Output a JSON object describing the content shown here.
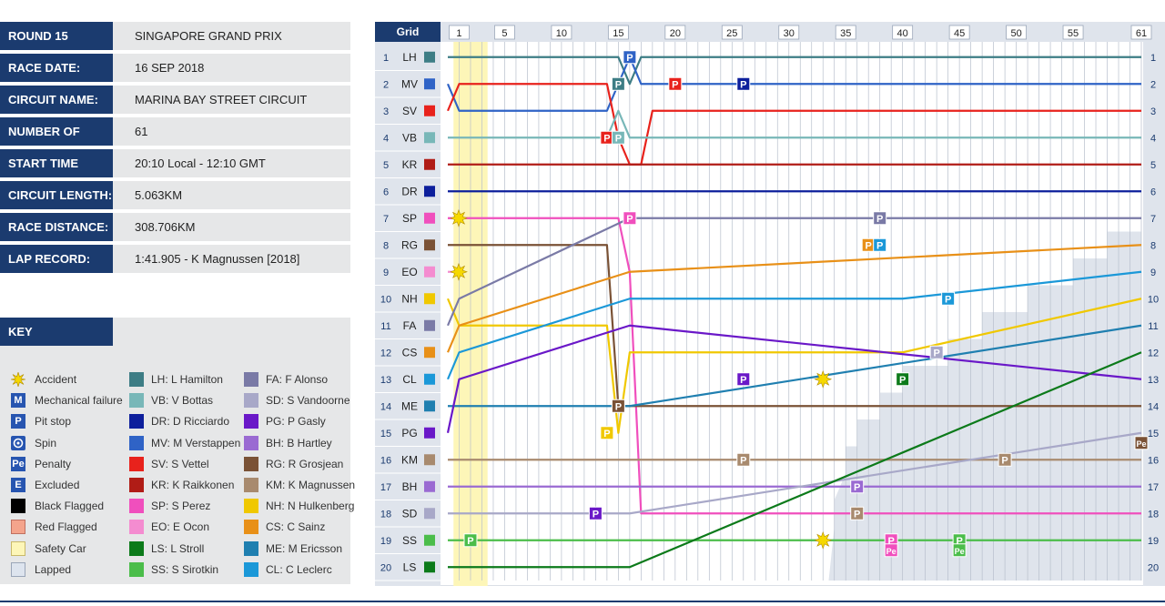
{
  "info": [
    {
      "label": "ROUND 15",
      "value": "SINGAPORE GRAND PRIX"
    },
    {
      "label": "RACE DATE:",
      "value": "16 SEP 2018"
    },
    {
      "label": "CIRCUIT NAME:",
      "value": "MARINA BAY STREET CIRCUIT"
    },
    {
      "label": "NUMBER OF LAPS:",
      "value": "61"
    },
    {
      "label": "START TIME",
      "value": "20:10 Local - 12:10 GMT"
    },
    {
      "label": "CIRCUIT LENGTH:",
      "value": "5.063KM"
    },
    {
      "label": "RACE DISTANCE:",
      "value": "308.706KM"
    },
    {
      "label": "LAP RECORD:",
      "value": "1:41.905 - K Magnussen [2018]"
    }
  ],
  "key": {
    "title": "KEY",
    "symbols": [
      {
        "label": "Accident",
        "icon": "accident-icon"
      },
      {
        "label": "Mechanical failure",
        "icon": "M"
      },
      {
        "label": "Pit stop",
        "icon": "P"
      },
      {
        "label": "Spin",
        "icon": "spin-icon"
      },
      {
        "label": "Penalty",
        "icon": "Pe"
      },
      {
        "label": "Excluded",
        "icon": "E"
      },
      {
        "label": "Black Flagged",
        "icon": "black-flag"
      },
      {
        "label": "Red Flagged",
        "icon": "red-flag"
      },
      {
        "label": "Safety Car",
        "icon": "safety-car"
      },
      {
        "label": "Lapped",
        "icon": "lapped"
      }
    ],
    "drivers_col1": [
      {
        "code": "LH",
        "label": "LH: L Hamilton",
        "color": "#3d7d85"
      },
      {
        "code": "VB",
        "label": "VB: V Bottas",
        "color": "#78b7b8"
      },
      {
        "code": "DR",
        "label": "DR: D Ricciardo",
        "color": "#0d1f9c"
      },
      {
        "code": "MV",
        "label": "MV: M Verstappen",
        "color": "#2f63c6"
      },
      {
        "code": "SV",
        "label": "SV: S Vettel",
        "color": "#e8221c"
      },
      {
        "code": "KR",
        "label": "KR: K Raikkonen",
        "color": "#b01c16"
      },
      {
        "code": "SP",
        "label": "SP: S Perez",
        "color": "#f04fbd"
      },
      {
        "code": "EO",
        "label": "EO: E Ocon",
        "color": "#f48cd0"
      },
      {
        "code": "LS",
        "label": "LS: L Stroll",
        "color": "#0c7a1a"
      },
      {
        "code": "SS",
        "label": "SS: S Sirotkin",
        "color": "#4bbd4a"
      }
    ],
    "drivers_col2": [
      {
        "code": "FA",
        "label": "FA: F Alonso",
        "color": "#7a7aa6"
      },
      {
        "code": "SD",
        "label": "SD: S Vandoorne",
        "color": "#a8a8c8"
      },
      {
        "code": "PG",
        "label": "PG: P Gasly",
        "color": "#6a18c8"
      },
      {
        "code": "BH",
        "label": "BH: B Hartley",
        "color": "#9a6ad2"
      },
      {
        "code": "RG",
        "label": "RG: R Grosjean",
        "color": "#7a5236"
      },
      {
        "code": "KM",
        "label": "KM: K Magnussen",
        "color": "#a88a6e"
      },
      {
        "code": "NH",
        "label": "NH: N Hulkenberg",
        "color": "#f0c800"
      },
      {
        "code": "CS",
        "label": "CS: C Sainz",
        "color": "#e89018"
      },
      {
        "code": "ME",
        "label": "ME: M Ericsson",
        "color": "#1f7fb0"
      },
      {
        "code": "CL",
        "label": "CL: C Leclerc",
        "color": "#1b98d8"
      }
    ]
  },
  "chart_data": {
    "type": "line",
    "title": "",
    "corner_label": "Grid",
    "x_ticks": [
      1,
      5,
      10,
      15,
      20,
      25,
      30,
      35,
      40,
      45,
      50,
      55,
      61
    ],
    "x_range": [
      0,
      61
    ],
    "y_positions": [
      1,
      2,
      3,
      4,
      5,
      6,
      7,
      8,
      9,
      10,
      11,
      12,
      13,
      14,
      15,
      16,
      17,
      18,
      19,
      20
    ],
    "grid_order": [
      "LH",
      "MV",
      "SV",
      "VB",
      "KR",
      "DR",
      "SP",
      "RG",
      "EO",
      "NH",
      "FA",
      "CS",
      "CL",
      "ME",
      "PG",
      "KM",
      "BH",
      "SD",
      "SS",
      "LS"
    ],
    "safety_car_laps": [
      1,
      3
    ],
    "series": [
      {
        "name": "LH",
        "color": "#3d7d85",
        "points": [
          [
            0,
            1
          ],
          [
            15,
            1
          ],
          [
            16,
            2
          ],
          [
            17,
            1
          ],
          [
            61,
            1
          ]
        ]
      },
      {
        "name": "MV",
        "color": "#2f63c6",
        "points": [
          [
            0,
            2
          ],
          [
            1,
            3
          ],
          [
            14,
            3
          ],
          [
            15,
            2
          ],
          [
            16,
            1
          ],
          [
            17,
            2
          ],
          [
            61,
            2
          ]
        ]
      },
      {
        "name": "SV",
        "color": "#e8221c",
        "points": [
          [
            0,
            3
          ],
          [
            1,
            2
          ],
          [
            14,
            2
          ],
          [
            15,
            4
          ],
          [
            16,
            5
          ],
          [
            17,
            5
          ],
          [
            18,
            3
          ],
          [
            61,
            3
          ]
        ]
      },
      {
        "name": "VB",
        "color": "#78b7b8",
        "points": [
          [
            0,
            4
          ],
          [
            14,
            4
          ],
          [
            15,
            3
          ],
          [
            16,
            4
          ],
          [
            17,
            4
          ],
          [
            18,
            4
          ],
          [
            61,
            4
          ]
        ]
      },
      {
        "name": "KR",
        "color": "#b01c16",
        "points": [
          [
            0,
            5
          ],
          [
            61,
            5
          ]
        ]
      },
      {
        "name": "DR",
        "color": "#0d1f9c",
        "points": [
          [
            0,
            6
          ],
          [
            61,
            6
          ]
        ]
      },
      {
        "name": "SP",
        "color": "#f04fbd",
        "points": [
          [
            0,
            7
          ],
          [
            14,
            7
          ],
          [
            15,
            7
          ],
          [
            16,
            9
          ],
          [
            17,
            18
          ],
          [
            61,
            18
          ]
        ]
      },
      {
        "name": "RG",
        "color": "#7a5236",
        "points": [
          [
            0,
            8
          ],
          [
            14,
            8
          ],
          [
            15,
            14
          ],
          [
            61,
            14
          ]
        ]
      },
      {
        "name": "EO",
        "color": "#f48cd0",
        "points": [
          [
            0,
            9
          ],
          [
            1,
            9
          ]
        ]
      },
      {
        "name": "NH",
        "color": "#f0c800",
        "points": [
          [
            0,
            10
          ],
          [
            1,
            11
          ],
          [
            14,
            11
          ],
          [
            15,
            15
          ],
          [
            16,
            12
          ],
          [
            40,
            12
          ],
          [
            61,
            10
          ]
        ]
      },
      {
        "name": "FA",
        "color": "#7a7aa6",
        "points": [
          [
            0,
            11
          ],
          [
            1,
            10
          ],
          [
            16,
            7
          ],
          [
            61,
            7
          ]
        ]
      },
      {
        "name": "CS",
        "color": "#e89018",
        "points": [
          [
            0,
            12
          ],
          [
            1,
            11
          ],
          [
            16,
            9
          ],
          [
            61,
            8
          ]
        ]
      },
      {
        "name": "CL",
        "color": "#1b98d8",
        "points": [
          [
            0,
            13
          ],
          [
            1,
            12
          ],
          [
            16,
            10
          ],
          [
            40,
            10
          ],
          [
            61,
            9
          ]
        ]
      },
      {
        "name": "ME",
        "color": "#1f7fb0",
        "points": [
          [
            0,
            14
          ],
          [
            1,
            14
          ],
          [
            16,
            14
          ],
          [
            61,
            11
          ]
        ]
      },
      {
        "name": "PG",
        "color": "#6a18c8",
        "points": [
          [
            0,
            15
          ],
          [
            1,
            13
          ],
          [
            16,
            11
          ],
          [
            61,
            13
          ]
        ]
      },
      {
        "name": "KM",
        "color": "#a88a6e",
        "points": [
          [
            0,
            16
          ],
          [
            1,
            16
          ],
          [
            16,
            16
          ],
          [
            61,
            16
          ]
        ]
      },
      {
        "name": "BH",
        "color": "#9a6ad2",
        "points": [
          [
            0,
            17
          ],
          [
            1,
            17
          ],
          [
            16,
            17
          ],
          [
            61,
            17
          ]
        ]
      },
      {
        "name": "SD",
        "color": "#a8a8c8",
        "points": [
          [
            0,
            18
          ],
          [
            1,
            18
          ],
          [
            16,
            18
          ],
          [
            61,
            15
          ]
        ]
      },
      {
        "name": "SS",
        "color": "#4bbd4a",
        "points": [
          [
            0,
            19
          ],
          [
            1,
            19
          ],
          [
            16,
            19
          ],
          [
            61,
            19
          ]
        ]
      },
      {
        "name": "LS",
        "color": "#0c7a1a",
        "points": [
          [
            0,
            20
          ],
          [
            1,
            20
          ],
          [
            16,
            20
          ],
          [
            61,
            12
          ]
        ]
      }
    ],
    "markers": [
      {
        "type": "P",
        "lap": 16,
        "pos": 1,
        "color": "#2f63c6"
      },
      {
        "type": "P",
        "lap": 15,
        "pos": 2,
        "color": "#3d7d85"
      },
      {
        "type": "P",
        "lap": 20,
        "pos": 2,
        "color": "#e8221c"
      },
      {
        "type": "P",
        "lap": 26,
        "pos": 2,
        "color": "#0d1f9c"
      },
      {
        "type": "P",
        "lap": 14,
        "pos": 4,
        "color": "#e8221c"
      },
      {
        "type": "P",
        "lap": 15,
        "pos": 4,
        "color": "#78b7b8"
      },
      {
        "type": "P",
        "lap": 16,
        "pos": 7,
        "color": "#f04fbd"
      },
      {
        "type": "P",
        "lap": 38,
        "pos": 7,
        "color": "#7a7aa6"
      },
      {
        "type": "P",
        "lap": 37,
        "pos": 8,
        "color": "#e89018"
      },
      {
        "type": "P",
        "lap": 38,
        "pos": 8,
        "color": "#1b98d8"
      },
      {
        "type": "P",
        "lap": 44,
        "pos": 10,
        "color": "#1b98d8"
      },
      {
        "type": "P",
        "lap": 43,
        "pos": 12,
        "color": "#a8a8c8"
      },
      {
        "type": "P",
        "lap": 26,
        "pos": 13,
        "color": "#6a18c8"
      },
      {
        "type": "P",
        "lap": 40,
        "pos": 13,
        "color": "#0c7a1a"
      },
      {
        "type": "P",
        "lap": 15,
        "pos": 14,
        "color": "#7a5236"
      },
      {
        "type": "P",
        "lap": 14,
        "pos": 15,
        "color": "#f0c800"
      },
      {
        "type": "P",
        "lap": 26,
        "pos": 16,
        "color": "#a88a6e"
      },
      {
        "type": "P",
        "lap": 49,
        "pos": 16,
        "color": "#a88a6e"
      },
      {
        "type": "P",
        "lap": 36,
        "pos": 17,
        "color": "#9a6ad2"
      },
      {
        "type": "P",
        "lap": 13,
        "pos": 18,
        "color": "#6a18c8"
      },
      {
        "type": "P",
        "lap": 36,
        "pos": 18,
        "color": "#a88a6e"
      },
      {
        "type": "P",
        "lap": 2,
        "pos": 19,
        "color": "#4bbd4a"
      },
      {
        "type": "P",
        "lap": 39,
        "pos": 19,
        "color": "#f04fbd"
      },
      {
        "type": "P",
        "lap": 45,
        "pos": 19,
        "color": "#4bbd4a"
      },
      {
        "type": "Pe",
        "lap": 39,
        "pos": 19,
        "color": "#f04fbd"
      },
      {
        "type": "Pe",
        "lap": 45,
        "pos": 19,
        "color": "#4bbd4a"
      },
      {
        "type": "Pe",
        "lap": 61,
        "pos": 15,
        "color": "#7a5236"
      },
      {
        "type": "accident",
        "lap": 0,
        "pos": 7
      },
      {
        "type": "accident",
        "lap": 0,
        "pos": 9
      },
      {
        "type": "accident",
        "lap": 33,
        "pos": 13
      },
      {
        "type": "accident",
        "lap": 33,
        "pos": 19
      }
    ]
  }
}
